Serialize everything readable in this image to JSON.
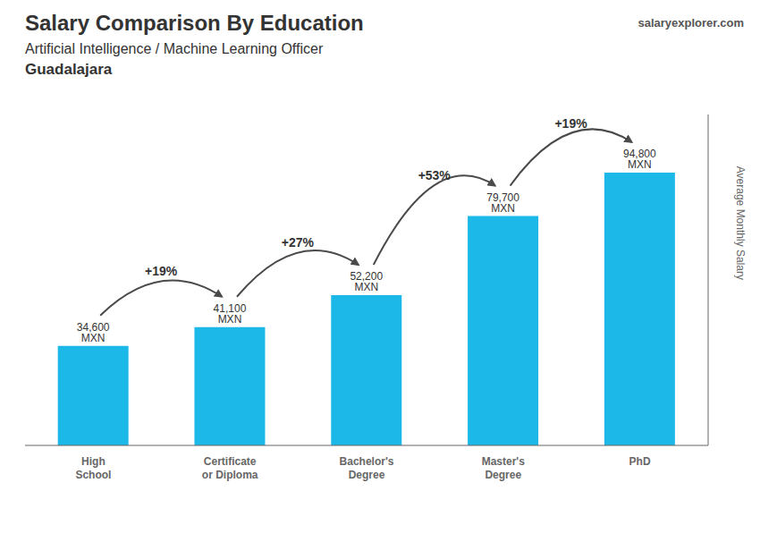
{
  "chart_data": {
    "type": "bar",
    "title": "Salary Comparison By Education",
    "subtitle": [
      "Artificial Intelligence / Machine Learning Officer",
      "Guadalajara"
    ],
    "source": "salaryexplorer.com",
    "ylabel": "Average Monthly Salary",
    "categories": [
      "High\nSchool",
      "Certificate\nor Diploma",
      "Bachelor's\nDegree",
      "Master's\nDegree",
      "PhD"
    ],
    "values": [
      34600,
      41100,
      52200,
      79700,
      94800
    ],
    "value_labels": [
      "34,600 MXN",
      "41,100 MXN",
      "52,200 MXN",
      "79,700 MXN",
      "94,800 MXN"
    ],
    "data_labels": true,
    "annotations": [
      "+19%",
      "+27%",
      "+53%",
      "+19%"
    ],
    "color": "#1CB8E8",
    "ylim": [
      0,
      115000
    ],
    "yticks": [],
    "grid": false,
    "tick_labels": "x"
  }
}
